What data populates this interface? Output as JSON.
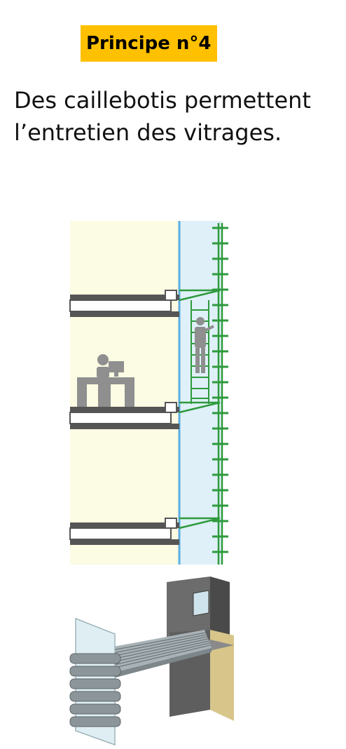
{
  "heading": "Principe n°4",
  "description": [
    "Des caillebotis permettent",
    "l’entretien des vitrages."
  ],
  "colors": {
    "heading_background": "#ffc000",
    "interior": "#fcfbe3",
    "glazing": "#dff0f8",
    "glazing_line": "#5aaee0",
    "grating": "#2e9a3c",
    "slab": "#555555",
    "figures": "#8f8f8f"
  },
  "illustrations": {
    "section": "facade-section-with-maintenance-walkways",
    "detail": "grating-walkway-and-frame-3d-detail"
  }
}
